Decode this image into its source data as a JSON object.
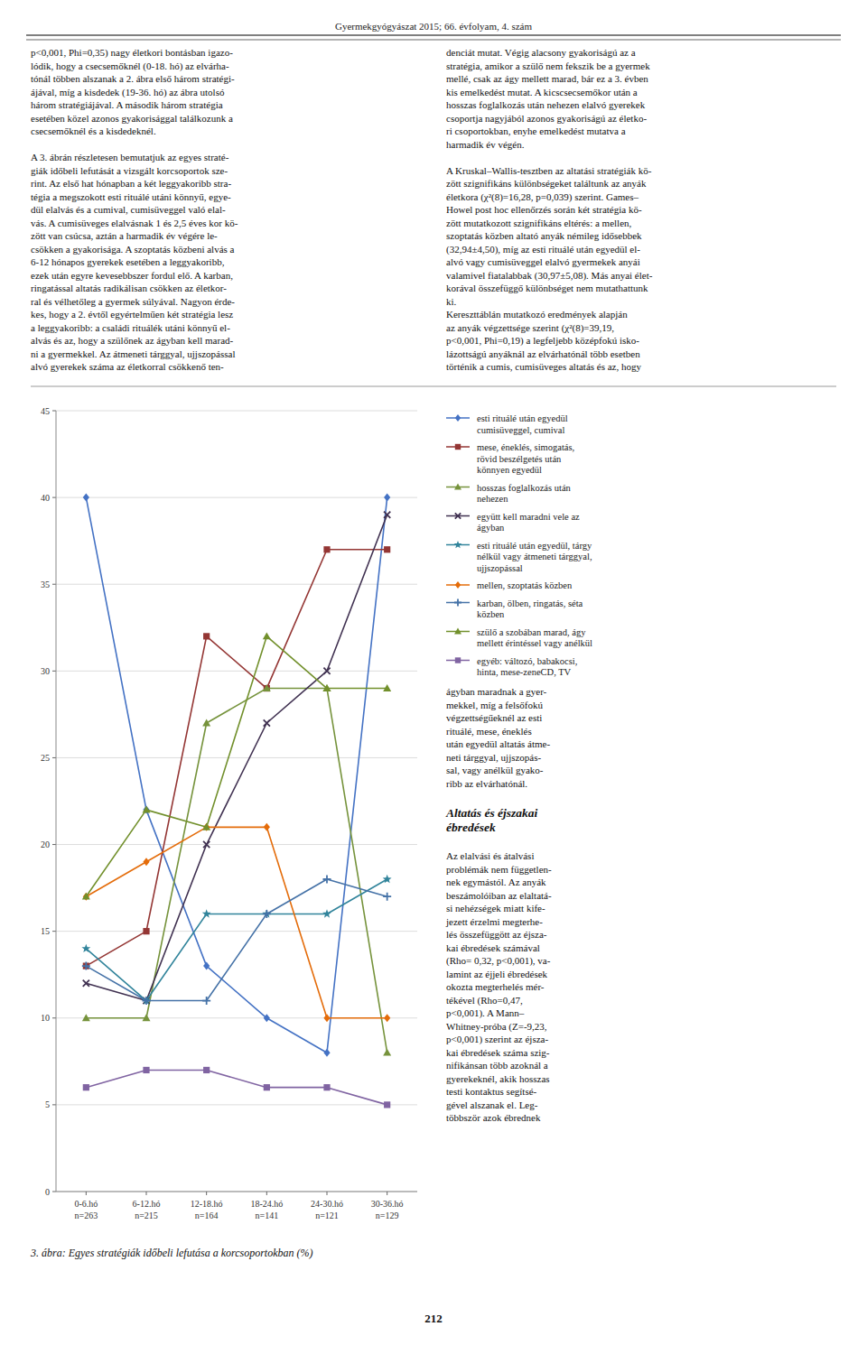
{
  "page_title": "Gyermekgyógyászat 2015; 66. évfolyam, 4. szám",
  "page_number": "212",
  "left_column": [
    [
      "p<0,001, Phi=0,35) nagy életkori bontásban igazo-",
      "lódik, hogy a csecsemőknél (0-18. hó) az elvárha-",
      "tónál többen alszanak a 2. ábra első három stratégi-",
      "ájával, míg a kisdedek (19-36. hó) az ábra utolsó",
      "három stratégiájával. A második három stratégia",
      "esetében közel azonos gyakorisággal találkozunk a",
      "csecsemőknél és a kisdedeknél."
    ],
    [
      "A 3. ábrán részletesen bemutatjuk az egyes straté-",
      "giák időbeli lefutását a vizsgált korcsoportok sze-",
      "rint. Az első hat hónapban a két leggyakoribb stra-",
      "tégia a megszokott esti rituálé utáni könnyű, egye-",
      "dül elalvás és a cumival, cumisüveggel való elal-",
      "vás. A cumisüveges elalvásnak 1 és 2,5 éves kor kö-",
      "zött van csúcsa, aztán a harmadik év végére le-",
      "csökken a gyakorisága. A szoptatás közbeni alvás a",
      "6-12 hónapos gyerekek esetében a leggyakoribb,",
      "ezek után egyre kevesebbszer fordul elő. A karban,",
      "ringatással altatás radikálisan csökken az életkor-",
      "ral és vélhetőleg a gyermek súlyával. Nagyon érde-",
      "kes, hogy a 2. évtől egyértelműen két stratégia lesz",
      "a leggyakoribb: a családi rituálék utáni könnyű el-",
      "alvás és az, hogy a szülőnek az ágyban kell marad-",
      "ni a gyermekkel. Az átmeneti tárggyal, ujjszopással",
      "alvó gyerekek száma az életkorral csökkenő ten-"
    ]
  ],
  "right_column_top": [
    [
      "denciát mutat. Végig alacsony gyakoriságú az a",
      "stratégia, amikor a szülő nem fekszik be a gyermek",
      "mellé, csak az ágy mellett marad, bár ez a 3. évben",
      "kis emelkedést mutat. A kicscsecsemőkor után a",
      "hosszas foglalkozás után nehezen elalvó gyerekek",
      "csoportja nagyjából azonos gyakoriságú az életko-",
      "ri csoportokban, enyhe emelkedést mutatva a",
      "harmadik év végén."
    ],
    [
      "A Kruskal–Wallis-tesztben az altatási stratégiák kö-",
      "zött szignifikáns különbségeket találtunk az anyák",
      "életkora (χ²(8)=16,28, p=0,039) szerint. Games–",
      "Howel post hoc ellenőrzés során két stratégia kö-",
      "zött mutatkozott szignifikáns eltérés: a mellen,",
      "szoptatás közben altató anyák némileg idősebbek",
      "(32,94±4,50), míg az esti rituálé után egyedül el-",
      "alvó vagy cumisüveggel elalvó gyermekek anyái",
      "valamivel fiatalabbak (30,97±5,08). Más anyai élet-",
      "korával összefüggő különbséget nem mutathattunk",
      "ki.",
      "Kereszttáblán mutatkozó eredmények alapján",
      "az anyák végzettsége szerint (χ²(8)=39,19,",
      "p<0,001, Phi=0,19) a legfeljebb középfokú isko-",
      "lázottságú anyáknál az elvárhatónál több esetben",
      "történik a cumis, cumisüveges altatás és az, hogy"
    ]
  ],
  "right_column_bottom": [
    "ágyban maradnak a gyer-",
    "mekkel, míg a felsőfokú",
    "végzettségűeknél az esti",
    "rituálé, mese, éneklés",
    "után egyedül altatás átme-",
    "neti tárggyal, ujjszopás-",
    "sal, vagy anélkül gyako-",
    "ribb az elvárhatónál."
  ],
  "section_title": "Altatás és éjszakai\nébredések",
  "right_column_section": [
    "Az elalvási és átalvási",
    "problémák nem független-",
    "nek egymástól. Az anyák",
    "beszámolóiban az elaltatá-",
    "si nehézségek miatt kife-",
    "jezett érzelmi megterhe-",
    "lés összefüggött az éjsza-",
    "kai ébredések számával",
    "(Rho= 0,32, p<0,001), va-",
    "lamint az éjjeli ébredések",
    "okozta megterhelés mér-",
    "tékével (Rho=0,47,",
    "p<0,001). A Mann–",
    "Whitney-próba (Z=-9,23,",
    "p<0,001) szerint az éjsza-",
    "kai ébredések száma szig-",
    "nifikánsan több azoknál a",
    "gyerekeknél, akik hosszas",
    "testi kontaktus segítsé-",
    "gével alszanak el. Leg-",
    "többször azok ébrednek"
  ],
  "chart_data": {
    "type": "line",
    "title": "3. ábra: Egyes stratégiák időbeli lefutása a korcsoportokban (%)",
    "categories": [
      "0-6.hó\nn=263",
      "6-12.hó\nn=215",
      "12-18.hó\nn=164",
      "18-24.hó\nn=141",
      "24-30.hó\nn=121",
      "30-36.hó\nn=129"
    ],
    "ylim": [
      0,
      45
    ],
    "yticks": [
      0,
      5,
      10,
      15,
      20,
      25,
      30,
      35,
      40,
      45
    ],
    "grid": true,
    "legend": "right",
    "series": [
      {
        "name": "esti rituálé után egyedül\ncumisüveggel, cumival",
        "color": "#4472C4",
        "marker": "diamond",
        "values": [
          40,
          22,
          13,
          10,
          8,
          40
        ]
      },
      {
        "name": "mese, éneklés, simogatás,\nrövid beszélgetés után\nkönnyen egyedül",
        "color": "#943634",
        "marker": "square",
        "values": [
          13,
          15,
          32,
          29,
          37,
          37
        ]
      },
      {
        "name": "hosszas foglalkozás után\nnehezen",
        "color": "#76933C",
        "marker": "triangle",
        "values": [
          10,
          10,
          27,
          29,
          29,
          8
        ]
      },
      {
        "name": "együtt kell maradni vele az\nágyban",
        "color": "#403151",
        "marker": "x",
        "values": [
          12,
          11,
          20,
          27,
          30,
          39
        ]
      },
      {
        "name": "esti rituálé után egyedül, tárgy\nnélkül vagy átmeneti tárggyal,\nujjszopással",
        "color": "#31849B",
        "marker": "star",
        "values": [
          14,
          11,
          16,
          16,
          16,
          18
        ]
      },
      {
        "name": "mellen, szoptatás közben",
        "color": "#E46C0A",
        "marker": "diamond",
        "values": [
          17,
          19,
          21,
          21,
          10,
          10
        ]
      },
      {
        "name": "karban, ölben, ringatás, séta\nközben",
        "color": "#4572A7",
        "marker": "plus",
        "values": [
          13,
          11,
          11,
          16,
          18,
          17
        ]
      },
      {
        "name": "szülő a szobában marad, ágy\nmellett érintéssel vagy anélkül",
        "color": "#72902C",
        "marker": "triangle",
        "values": [
          17,
          22,
          21,
          32,
          29,
          29
        ]
      },
      {
        "name": "egyéb: változó, babakocsi,\nhinta, mese-zeneCD, TV",
        "color": "#8064A2",
        "marker": "square",
        "values": [
          6,
          7,
          7,
          6,
          6,
          5
        ]
      }
    ]
  }
}
